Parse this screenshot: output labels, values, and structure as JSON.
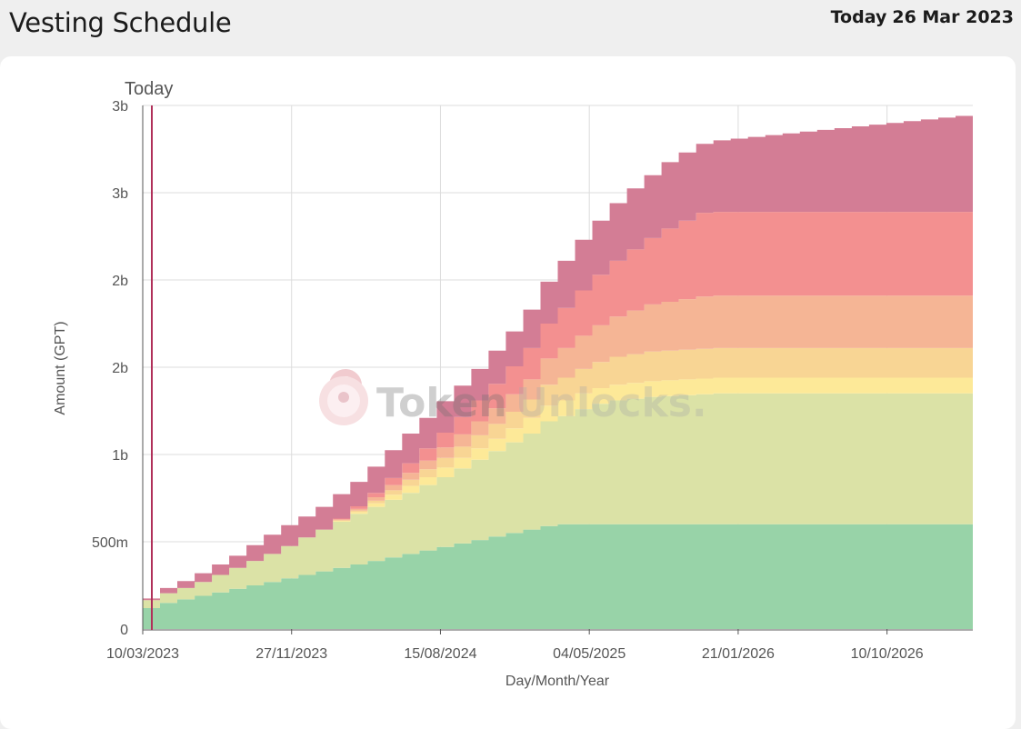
{
  "header": {
    "title": "Vesting Schedule",
    "today_label": "Today",
    "today_date": "26 Mar 2023"
  },
  "watermark": {
    "token": "Token",
    "unlocks": "Unlocks."
  },
  "chart_data": {
    "type": "area",
    "stacked": true,
    "step": true,
    "title": "",
    "xlabel": "Day/Month/Year",
    "ylabel": "Amount (GPT)",
    "x_start": "10/03/2023",
    "x_end": "10/03/2027",
    "x_ticks": [
      "10/03/2023",
      "27/11/2023",
      "15/08/2024",
      "04/05/2025",
      "21/01/2026",
      "10/10/2026"
    ],
    "y_ticks": [
      {
        "value": 0,
        "label": "0"
      },
      {
        "value": 500000000,
        "label": "500m"
      },
      {
        "value": 1000000000,
        "label": "1b"
      },
      {
        "value": 1500000000,
        "label": "2b"
      },
      {
        "value": 2000000000,
        "label": "2b"
      },
      {
        "value": 2500000000,
        "label": "3b"
      },
      {
        "value": 3000000000,
        "label": "3b"
      }
    ],
    "ylim": [
      0,
      3000000000
    ],
    "grid": true,
    "today_marker": {
      "date": "26/03/2023",
      "label": "Today"
    },
    "series": [
      {
        "color": "#98d3a8",
        "values": [
          120000000,
          150000000,
          170000000,
          190000000,
          210000000,
          230000000,
          250000000,
          270000000,
          290000000,
          310000000,
          330000000,
          350000000,
          370000000,
          390000000,
          410000000,
          430000000,
          450000000,
          470000000,
          490000000,
          510000000,
          530000000,
          550000000,
          570000000,
          590000000,
          600000000,
          600000000,
          600000000,
          600000000,
          600000000,
          600000000,
          600000000,
          600000000,
          600000000,
          600000000,
          600000000,
          600000000,
          600000000,
          600000000,
          600000000,
          600000000,
          600000000,
          600000000,
          600000000,
          600000000,
          600000000,
          600000000,
          600000000,
          600000000
        ]
      },
      {
        "color": "#dbe2a6",
        "values": [
          45000000,
          55000000,
          65000000,
          80000000,
          100000000,
          120000000,
          140000000,
          160000000,
          185000000,
          215000000,
          240000000,
          265000000,
          290000000,
          310000000,
          330000000,
          350000000,
          375000000,
          400000000,
          430000000,
          460000000,
          490000000,
          520000000,
          550000000,
          600000000,
          620000000,
          660000000,
          690000000,
          710000000,
          720000000,
          730000000,
          735000000,
          740000000,
          745000000,
          750000000,
          750000000,
          750000000,
          750000000,
          750000000,
          750000000,
          750000000,
          750000000,
          750000000,
          750000000,
          750000000,
          750000000,
          750000000,
          750000000,
          750000000
        ]
      },
      {
        "color": "#fde998",
        "values": [
          0,
          0,
          0,
          0,
          0,
          0,
          0,
          0,
          0,
          0,
          0,
          5000000,
          10000000,
          20000000,
          30000000,
          40000000,
          45000000,
          55000000,
          60000000,
          65000000,
          70000000,
          80000000,
          90000000,
          90000000,
          90000000,
          90000000,
          90000000,
          90000000,
          90000000,
          90000000,
          90000000,
          90000000,
          90000000,
          90000000,
          90000000,
          90000000,
          90000000,
          90000000,
          90000000,
          90000000,
          90000000,
          90000000,
          90000000,
          90000000,
          90000000,
          90000000,
          90000000,
          90000000
        ]
      },
      {
        "color": "#f8d594",
        "values": [
          0,
          0,
          0,
          0,
          0,
          0,
          0,
          0,
          0,
          0,
          0,
          3000000,
          8000000,
          15000000,
          25000000,
          35000000,
          45000000,
          55000000,
          65000000,
          75000000,
          85000000,
          95000000,
          105000000,
          120000000,
          130000000,
          140000000,
          150000000,
          160000000,
          165000000,
          170000000,
          170000000,
          170000000,
          170000000,
          170000000,
          170000000,
          170000000,
          170000000,
          170000000,
          170000000,
          170000000,
          170000000,
          170000000,
          170000000,
          170000000,
          170000000,
          170000000,
          170000000,
          170000000
        ]
      },
      {
        "color": "#f5b595",
        "values": [
          0,
          0,
          0,
          0,
          0,
          0,
          0,
          0,
          0,
          0,
          0,
          5000000,
          10000000,
          20000000,
          30000000,
          40000000,
          50000000,
          60000000,
          70000000,
          80000000,
          90000000,
          100000000,
          115000000,
          150000000,
          170000000,
          190000000,
          210000000,
          230000000,
          250000000,
          270000000,
          280000000,
          290000000,
          300000000,
          300000000,
          300000000,
          300000000,
          300000000,
          300000000,
          300000000,
          300000000,
          300000000,
          300000000,
          300000000,
          300000000,
          300000000,
          300000000,
          300000000,
          300000000
        ]
      },
      {
        "color": "#f39090",
        "values": [
          0,
          0,
          0,
          0,
          0,
          0,
          0,
          0,
          0,
          0,
          0,
          5000000,
          15000000,
          25000000,
          40000000,
          55000000,
          70000000,
          85000000,
          100000000,
          120000000,
          140000000,
          160000000,
          180000000,
          200000000,
          230000000,
          260000000,
          290000000,
          320000000,
          350000000,
          380000000,
          420000000,
          450000000,
          480000000,
          480000000,
          480000000,
          480000000,
          480000000,
          480000000,
          480000000,
          480000000,
          480000000,
          480000000,
          480000000,
          480000000,
          480000000,
          480000000,
          480000000,
          480000000
        ]
      },
      {
        "color": "#d37d95",
        "values": [
          10000000,
          30000000,
          40000000,
          50000000,
          60000000,
          70000000,
          90000000,
          110000000,
          120000000,
          120000000,
          130000000,
          140000000,
          140000000,
          150000000,
          160000000,
          170000000,
          175000000,
          180000000,
          180000000,
          180000000,
          190000000,
          200000000,
          220000000,
          240000000,
          270000000,
          290000000,
          310000000,
          330000000,
          350000000,
          360000000,
          380000000,
          390000000,
          395000000,
          410000000,
          420000000,
          430000000,
          440000000,
          450000000,
          460000000,
          470000000,
          480000000,
          490000000,
          500000000,
          510000000,
          520000000,
          530000000,
          540000000,
          550000000
        ]
      }
    ]
  }
}
